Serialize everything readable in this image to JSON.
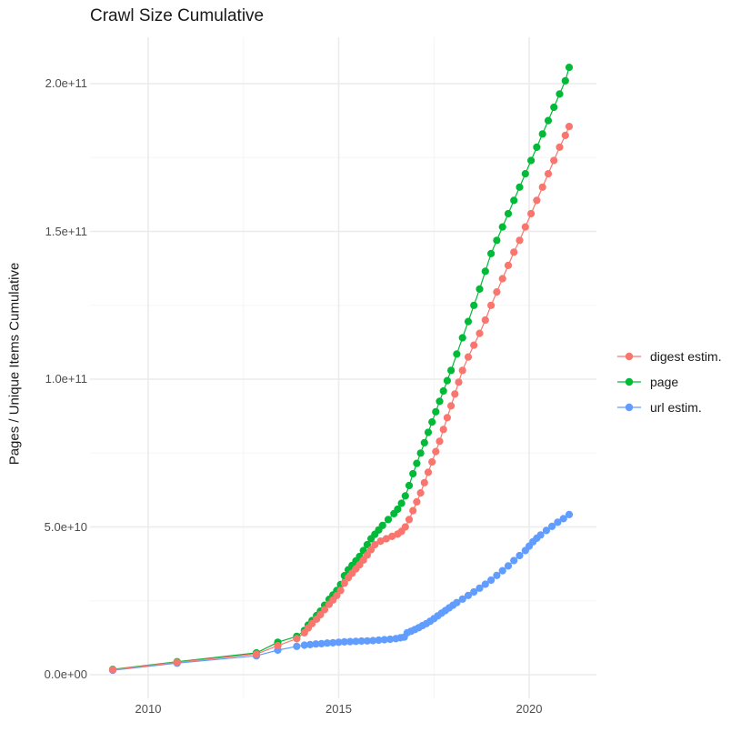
{
  "title": "Crawl Size Cumulative",
  "axes": {
    "y_label": "Pages / Unique Items Cumulative",
    "x_tick_labels": [
      "2010",
      "2015",
      "2020"
    ],
    "y_tick_labels": [
      "0.0e+00",
      "5.0e+10",
      "1.0e+11",
      "1.5e+11",
      "2.0e+11"
    ]
  },
  "legend": {
    "items": [
      {
        "label": "digest estim.",
        "color": "#F8766D"
      },
      {
        "label": "page",
        "color": "#00BA38"
      },
      {
        "label": "url estim.",
        "color": "#619CFF"
      }
    ]
  },
  "colors": {
    "background": "#FFFFFF",
    "grid_major": "#EBEBEB",
    "grid_minor": "#F5F5F5",
    "axis_text": "#4D4D4D",
    "title_text": "#1A1A1A"
  },
  "chart_data": {
    "type": "scatter",
    "title": "Crawl Size Cumulative",
    "xlabel": "",
    "ylabel": "Pages / Unique Items Cumulative",
    "grid": true,
    "legend_position": "right",
    "value_unit": "1e9 (values below are billions of pages/items)",
    "x_axis": {
      "tick_values": [
        2010,
        2015,
        2020
      ],
      "minor_gridlines": [
        2012.5,
        2017.5
      ],
      "range_shown": [
        2008.5,
        2021.7
      ]
    },
    "y_axis": {
      "tick_values_e9": [
        0,
        50,
        100,
        150,
        200
      ],
      "tick_labels": [
        "0.0e+00",
        "5.0e+10",
        "1.0e+11",
        "1.5e+11",
        "2.0e+11"
      ],
      "minor_gridlines_e9": [
        25,
        75,
        125,
        175
      ],
      "range_shown_e9": [
        -9,
        216
      ]
    },
    "series": [
      {
        "name": "digest estim.",
        "color": "#F8766D",
        "z": 2,
        "points": [
          [
            2009.07,
            1.7
          ],
          [
            2010.76,
            4.2
          ],
          [
            2012.84,
            7.0
          ],
          [
            2013.4,
            9.8
          ],
          [
            2013.9,
            12.2
          ],
          [
            2014.1,
            14.2
          ],
          [
            2014.2,
            15.8
          ],
          [
            2014.3,
            17.3
          ],
          [
            2014.42,
            18.8
          ],
          [
            2014.52,
            20.3
          ],
          [
            2014.63,
            22.0
          ],
          [
            2014.75,
            23.8
          ],
          [
            2014.85,
            25.3
          ],
          [
            2014.95,
            26.8
          ],
          [
            2015.05,
            28.5
          ],
          [
            2015.15,
            31.0
          ],
          [
            2015.25,
            32.8
          ],
          [
            2015.35,
            34.3
          ],
          [
            2015.45,
            35.8
          ],
          [
            2015.55,
            37.2
          ],
          [
            2015.65,
            38.8
          ],
          [
            2015.75,
            40.5
          ],
          [
            2015.85,
            42.3
          ],
          [
            2015.95,
            44.0
          ],
          [
            2016.1,
            45.2
          ],
          [
            2016.25,
            46.0
          ],
          [
            2016.4,
            46.8
          ],
          [
            2016.55,
            47.6
          ],
          [
            2016.65,
            48.5
          ],
          [
            2016.75,
            50.0
          ],
          [
            2016.85,
            52.5
          ],
          [
            2016.95,
            55.5
          ],
          [
            2017.05,
            58.5
          ],
          [
            2017.15,
            61.5
          ],
          [
            2017.25,
            65.0
          ],
          [
            2017.35,
            68.5
          ],
          [
            2017.45,
            72.0
          ],
          [
            2017.55,
            75.5
          ],
          [
            2017.65,
            79.0
          ],
          [
            2017.75,
            83.0
          ],
          [
            2017.85,
            87.0
          ],
          [
            2017.95,
            91.0
          ],
          [
            2018.05,
            95.0
          ],
          [
            2018.15,
            99.0
          ],
          [
            2018.25,
            103.0
          ],
          [
            2018.4,
            107.5
          ],
          [
            2018.55,
            111.5
          ],
          [
            2018.7,
            115.5
          ],
          [
            2018.85,
            120.0
          ],
          [
            2019.0,
            125.0
          ],
          [
            2019.15,
            129.5
          ],
          [
            2019.3,
            134.0
          ],
          [
            2019.45,
            138.5
          ],
          [
            2019.6,
            143.0
          ],
          [
            2019.75,
            147.0
          ],
          [
            2019.9,
            151.5
          ],
          [
            2020.05,
            156.0
          ],
          [
            2020.2,
            160.5
          ],
          [
            2020.35,
            165.0
          ],
          [
            2020.5,
            169.5
          ],
          [
            2020.65,
            174.0
          ],
          [
            2020.8,
            178.5
          ],
          [
            2020.95,
            182.5
          ],
          [
            2021.05,
            185.5
          ]
        ]
      },
      {
        "name": "page",
        "color": "#00BA38",
        "z": 0,
        "points": [
          [
            2009.07,
            1.8
          ],
          [
            2010.76,
            4.4
          ],
          [
            2012.84,
            7.4
          ],
          [
            2013.4,
            11.0
          ],
          [
            2013.9,
            13.0
          ],
          [
            2014.1,
            15.0
          ],
          [
            2014.2,
            16.8
          ],
          [
            2014.3,
            18.3
          ],
          [
            2014.42,
            20.0
          ],
          [
            2014.52,
            21.5
          ],
          [
            2014.63,
            23.5
          ],
          [
            2014.75,
            25.5
          ],
          [
            2014.85,
            27.0
          ],
          [
            2014.95,
            28.5
          ],
          [
            2015.05,
            30.5
          ],
          [
            2015.15,
            33.5
          ],
          [
            2015.25,
            35.5
          ],
          [
            2015.35,
            37.0
          ],
          [
            2015.45,
            38.5
          ],
          [
            2015.55,
            40.0
          ],
          [
            2015.65,
            42.0
          ],
          [
            2015.75,
            44.0
          ],
          [
            2015.85,
            46.0
          ],
          [
            2015.95,
            47.5
          ],
          [
            2016.05,
            49.0
          ],
          [
            2016.15,
            50.5
          ],
          [
            2016.3,
            52.5
          ],
          [
            2016.45,
            54.5
          ],
          [
            2016.55,
            56.0
          ],
          [
            2016.65,
            58.0
          ],
          [
            2016.75,
            60.5
          ],
          [
            2016.85,
            64.0
          ],
          [
            2016.95,
            68.0
          ],
          [
            2017.05,
            71.5
          ],
          [
            2017.15,
            75.0
          ],
          [
            2017.25,
            78.5
          ],
          [
            2017.35,
            82.0
          ],
          [
            2017.45,
            85.5
          ],
          [
            2017.55,
            89.0
          ],
          [
            2017.65,
            92.5
          ],
          [
            2017.75,
            96.0
          ],
          [
            2017.85,
            99.5
          ],
          [
            2017.95,
            103.0
          ],
          [
            2018.1,
            108.5
          ],
          [
            2018.25,
            114.0
          ],
          [
            2018.4,
            119.5
          ],
          [
            2018.55,
            125.0
          ],
          [
            2018.7,
            130.5
          ],
          [
            2018.85,
            136.5
          ],
          [
            2019.0,
            142.5
          ],
          [
            2019.15,
            147.0
          ],
          [
            2019.3,
            151.5
          ],
          [
            2019.45,
            156.0
          ],
          [
            2019.6,
            160.5
          ],
          [
            2019.75,
            165.0
          ],
          [
            2019.9,
            169.5
          ],
          [
            2020.05,
            174.0
          ],
          [
            2020.2,
            178.5
          ],
          [
            2020.35,
            183.0
          ],
          [
            2020.5,
            187.5
          ],
          [
            2020.65,
            192.0
          ],
          [
            2020.8,
            196.5
          ],
          [
            2020.95,
            201.0
          ],
          [
            2021.05,
            205.5
          ]
        ]
      },
      {
        "name": "url estim.",
        "color": "#619CFF",
        "z": 1,
        "points": [
          [
            2009.07,
            1.5
          ],
          [
            2010.76,
            3.9
          ],
          [
            2012.84,
            6.4
          ],
          [
            2013.4,
            8.3
          ],
          [
            2013.9,
            9.6
          ],
          [
            2014.1,
            10.0
          ],
          [
            2014.25,
            10.2
          ],
          [
            2014.4,
            10.4
          ],
          [
            2014.55,
            10.5
          ],
          [
            2014.7,
            10.7
          ],
          [
            2014.85,
            10.8
          ],
          [
            2015.0,
            11.0
          ],
          [
            2015.15,
            11.1
          ],
          [
            2015.3,
            11.2
          ],
          [
            2015.45,
            11.3
          ],
          [
            2015.6,
            11.4
          ],
          [
            2015.75,
            11.45
          ],
          [
            2015.9,
            11.55
          ],
          [
            2016.05,
            11.7
          ],
          [
            2016.2,
            11.85
          ],
          [
            2016.35,
            12.0
          ],
          [
            2016.5,
            12.2
          ],
          [
            2016.62,
            12.5
          ],
          [
            2016.72,
            12.7
          ],
          [
            2016.8,
            14.2
          ],
          [
            2016.9,
            14.7
          ],
          [
            2017.0,
            15.3
          ],
          [
            2017.1,
            15.9
          ],
          [
            2017.2,
            16.6
          ],
          [
            2017.3,
            17.3
          ],
          [
            2017.4,
            18.1
          ],
          [
            2017.5,
            19.0
          ],
          [
            2017.6,
            19.9
          ],
          [
            2017.7,
            20.8
          ],
          [
            2017.8,
            21.7
          ],
          [
            2017.9,
            22.6
          ],
          [
            2018.0,
            23.5
          ],
          [
            2018.1,
            24.4
          ],
          [
            2018.25,
            25.6
          ],
          [
            2018.4,
            26.8
          ],
          [
            2018.55,
            28.0
          ],
          [
            2018.7,
            29.3
          ],
          [
            2018.85,
            30.6
          ],
          [
            2019.0,
            32.0
          ],
          [
            2019.15,
            33.6
          ],
          [
            2019.3,
            35.2
          ],
          [
            2019.45,
            36.8
          ],
          [
            2019.6,
            38.6
          ],
          [
            2019.75,
            40.3
          ],
          [
            2019.9,
            42.0
          ],
          [
            2020.0,
            43.5
          ],
          [
            2020.1,
            45.0
          ],
          [
            2020.2,
            46.2
          ],
          [
            2020.3,
            47.3
          ],
          [
            2020.45,
            48.8
          ],
          [
            2020.6,
            50.2
          ],
          [
            2020.75,
            51.6
          ],
          [
            2020.9,
            52.8
          ],
          [
            2021.05,
            54.2
          ]
        ]
      }
    ]
  }
}
